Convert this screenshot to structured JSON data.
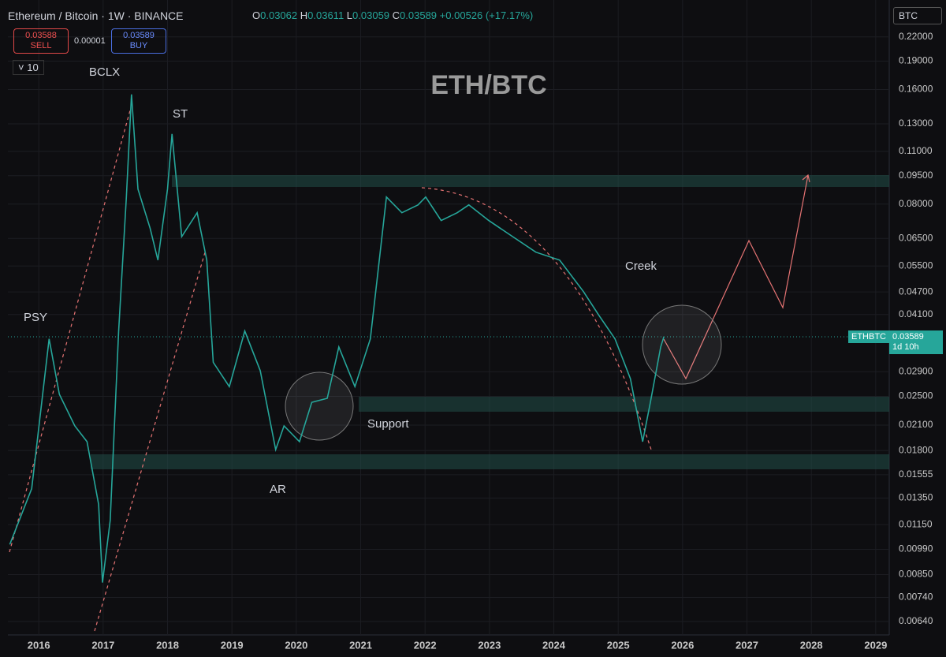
{
  "header": {
    "symbol": "Ethereum / Bitcoin · 1W · BINANCE",
    "open_label": "O",
    "open": "0.03062",
    "high_label": "H",
    "high": "0.03611",
    "low_label": "L",
    "low": "0.03059",
    "close_label": "C",
    "close": "0.03589",
    "change": "+0.00526 (+17.17%)"
  },
  "trade": {
    "sell_price": "0.03588",
    "sell": "SELL",
    "spread": "0.00001",
    "buy_price": "0.03589",
    "buy": "BUY",
    "quantity": "10"
  },
  "currency": "BTC",
  "price_tag": {
    "symbol": "ETHBTC",
    "price": "0.03589",
    "countdown": "1d 10h"
  },
  "chart_data": {
    "type": "line",
    "title": "ETH/BTC",
    "log_scale": true,
    "grid": true,
    "color": "#26a69a",
    "x": [
      2015.55,
      2015.89,
      2016.16,
      2016.32,
      2016.56,
      2016.75,
      2016.93,
      2016.99,
      2017.11,
      2017.24,
      2017.36,
      2017.44,
      2017.54,
      2017.73,
      2017.85,
      2018.0,
      2018.07,
      2018.22,
      2018.46,
      2018.61,
      2018.71,
      2018.96,
      2019.2,
      2019.44,
      2019.68,
      2019.81,
      2020.05,
      2020.24,
      2020.48,
      2020.66,
      2020.91,
      2021.15,
      2021.4,
      2021.64,
      2021.89,
      2022.01,
      2022.25,
      2022.5,
      2022.68,
      2022.99,
      2023.36,
      2023.72,
      2024.09,
      2024.46,
      2024.7,
      2024.95,
      2025.19,
      2025.38,
      2025.5,
      2025.66,
      2025.71
    ],
    "values": [
      0.0102,
      0.0143,
      0.0354,
      0.0253,
      0.0209,
      0.019,
      0.013,
      0.0081,
      0.0118,
      0.0371,
      0.0835,
      0.1553,
      0.0876,
      0.069,
      0.057,
      0.0876,
      0.1223,
      0.0657,
      0.0759,
      0.057,
      0.0307,
      0.0265,
      0.0371,
      0.0292,
      0.0181,
      0.0209,
      0.019,
      0.0241,
      0.0247,
      0.0337,
      0.0265,
      0.0354,
      0.0835,
      0.0759,
      0.0796,
      0.0835,
      0.0724,
      0.0759,
      0.0796,
      0.0724,
      0.0657,
      0.0598,
      0.057,
      0.0471,
      0.0408,
      0.0354,
      0.0278,
      0.019,
      0.0241,
      0.0337,
      0.03589
    ],
    "xlim": [
      2015.52,
      2029.21
    ],
    "xticks": [
      2016,
      2017,
      2018,
      2019,
      2020,
      2021,
      2022,
      2023,
      2024,
      2025,
      2026,
      2027,
      2028,
      2029
    ],
    "ylim": [
      0.0059,
      0.275
    ],
    "yticks": [
      {
        "value": 0.22,
        "label": "0.22000"
      },
      {
        "value": 0.19,
        "label": "0.19000"
      },
      {
        "value": 0.16,
        "label": "0.16000"
      },
      {
        "value": 0.13,
        "label": "0.13000"
      },
      {
        "value": 0.11,
        "label": "0.11000"
      },
      {
        "value": 0.095,
        "label": "0.09500"
      },
      {
        "value": 0.08,
        "label": "0.08000"
      },
      {
        "value": 0.065,
        "label": "0.06500"
      },
      {
        "value": 0.055,
        "label": "0.05500"
      },
      {
        "value": 0.047,
        "label": "0.04700"
      },
      {
        "value": 0.041,
        "label": "0.04100"
      },
      {
        "value": 0.029,
        "label": "0.02900"
      },
      {
        "value": 0.025,
        "label": "0.02500"
      },
      {
        "value": 0.021,
        "label": "0.02100"
      },
      {
        "value": 0.018,
        "label": "0.01800"
      },
      {
        "value": 0.01555,
        "label": "0.01555"
      },
      {
        "value": 0.0135,
        "label": "0.01350"
      },
      {
        "value": 0.0115,
        "label": "0.01150"
      },
      {
        "value": 0.0099,
        "label": "0.00990"
      },
      {
        "value": 0.0085,
        "label": "0.00850"
      },
      {
        "value": 0.0074,
        "label": "0.00740"
      },
      {
        "value": 0.0064,
        "label": "0.00640"
      }
    ],
    "annotations": [
      "BCLX",
      "ST",
      "PSY",
      "Creek",
      "Support",
      "AR"
    ]
  }
}
